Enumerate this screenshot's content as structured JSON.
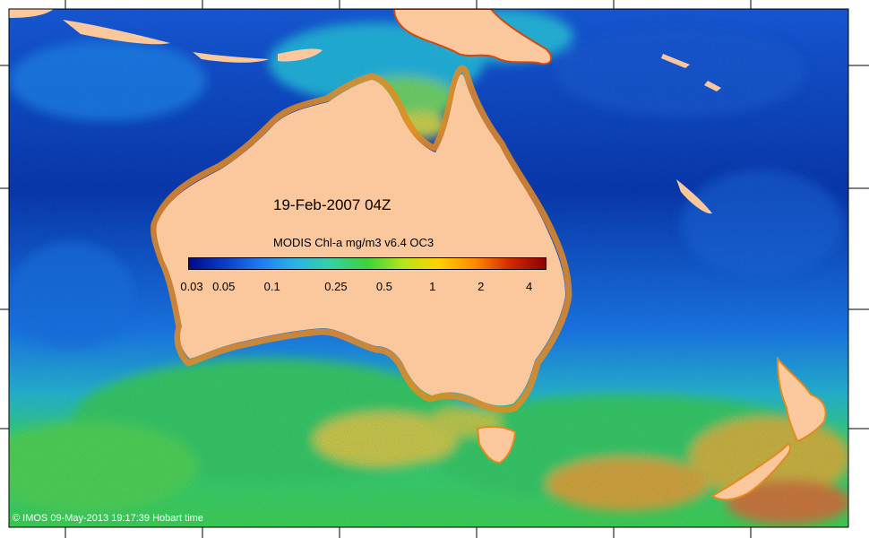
{
  "map": {
    "date_label": "19-Feb-2007 04Z",
    "colorbar": {
      "title": "MODIS Chl-a mg/m3 v6.4 OC3",
      "scale": "log",
      "range": [
        0.03,
        5
      ],
      "ticks": [
        "0.03",
        "0.05",
        "0.1",
        "0.25",
        "0.5",
        "1",
        "2",
        "4"
      ],
      "tick_values": [
        0.03,
        0.05,
        0.1,
        0.25,
        0.5,
        1,
        2,
        4
      ],
      "palette": [
        "#000a8a",
        "#0a3cc8",
        "#1e7cf0",
        "#2ab4e6",
        "#34d2a0",
        "#3cd23c",
        "#b4e61e",
        "#ffd200",
        "#ff8c00",
        "#d22a00",
        "#8c0000"
      ]
    },
    "credit": "© IMOS 09-May-2013 19:17:39 Hobart time",
    "colors": {
      "land": "#fbc79d",
      "open_ocean": "#0a2a9a",
      "southern_ocean": "#3cc850",
      "coastal": "#e08a20"
    }
  }
}
